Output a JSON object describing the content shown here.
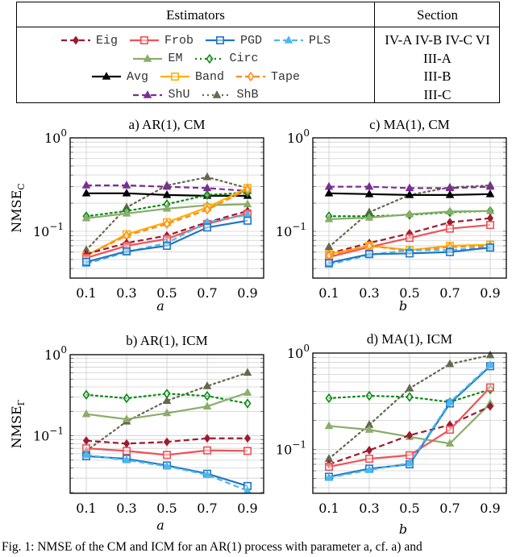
{
  "legend": {
    "header_estimators": "Estimators",
    "header_section": "Section",
    "rows": [
      {
        "section": "IV-A IV-B IV-C VI",
        "items": [
          "Eig",
          "Frob",
          "PGD",
          "PLS"
        ]
      },
      {
        "section": "III-A",
        "items": [
          "EM",
          "Circ"
        ]
      },
      {
        "section": "III-B",
        "items": [
          "Avg",
          "Band",
          "Tape"
        ]
      },
      {
        "section": "III-C",
        "items": [
          "ShU",
          "ShB"
        ]
      }
    ]
  },
  "styles": {
    "Eig": {
      "color": "#9b1b30",
      "dash": "dashed",
      "marker": "diamond-filled"
    },
    "Frob": {
      "color": "#ef5257",
      "dash": "solid",
      "marker": "square-open"
    },
    "PGD": {
      "color": "#1f77c4",
      "dash": "solid",
      "marker": "square-open"
    },
    "PLS": {
      "color": "#4cb8f0",
      "dash": "dashed",
      "marker": "triangle-filled"
    },
    "EM": {
      "color": "#8aad6a",
      "dash": "solid",
      "marker": "triangle-filled"
    },
    "Circ": {
      "color": "#0a8a12",
      "dash": "dotted",
      "marker": "diamond-open"
    },
    "Avg": {
      "color": "#000000",
      "dash": "solid",
      "marker": "triangle-filled"
    },
    "Band": {
      "color": "#ffb000",
      "dash": "solid",
      "marker": "square-open"
    },
    "Tape": {
      "color": "#ff8c1a",
      "dash": "dashed",
      "marker": "diamond-open"
    },
    "ShU": {
      "color": "#7b2d96",
      "dash": "dashed",
      "marker": "triangle-filled"
    },
    "ShB": {
      "color": "#65674f",
      "dash": "dotted",
      "marker": "triangle-filled"
    }
  },
  "caption": "Fig. 1: NMSE of the CM and ICM for an AR(1) process with parameter a, cf. a) and",
  "chart_data": [
    {
      "id": "a",
      "type": "line",
      "title": "a) AR(1), CM",
      "xlabel": "a",
      "ylabel": "NMSE",
      "ylabel_sub": "C",
      "yscale": "log",
      "ylim": [
        0.0316,
        1.0
      ],
      "ytick_labels": [
        "10⁻¹",
        "10⁰"
      ],
      "yticks": [
        0.1,
        1.0
      ],
      "x": [
        0.1,
        0.3,
        0.5,
        0.7,
        0.9
      ],
      "xtick_labels": [
        "0.1",
        "0.3",
        "0.5",
        "0.7",
        "0.9"
      ],
      "grid": true,
      "series": [
        {
          "name": "ShB",
          "values": [
            0.063,
            0.18,
            0.31,
            0.38,
            0.29
          ]
        },
        {
          "name": "ShU",
          "values": [
            0.31,
            0.31,
            0.3,
            0.29,
            0.27
          ]
        },
        {
          "name": "Avg",
          "values": [
            0.255,
            0.255,
            0.245,
            0.24,
            0.24
          ]
        },
        {
          "name": "Circ",
          "values": [
            0.145,
            0.165,
            0.195,
            0.245,
            0.26
          ]
        },
        {
          "name": "EM",
          "values": [
            0.138,
            0.155,
            0.175,
            0.19,
            0.195
          ]
        },
        {
          "name": "Band",
          "values": [
            0.055,
            0.093,
            0.125,
            0.18,
            0.29
          ]
        },
        {
          "name": "Tape",
          "values": [
            0.055,
            0.09,
            0.12,
            0.17,
            0.28
          ]
        },
        {
          "name": "Eig",
          "values": [
            0.057,
            0.075,
            0.09,
            0.125,
            0.165
          ]
        },
        {
          "name": "Frob",
          "values": [
            0.052,
            0.07,
            0.083,
            0.12,
            0.155
          ]
        },
        {
          "name": "PLS",
          "values": [
            0.045,
            0.06,
            0.075,
            0.125,
            0.15
          ]
        },
        {
          "name": "PGD",
          "values": [
            0.047,
            0.061,
            0.07,
            0.11,
            0.13
          ]
        }
      ]
    },
    {
      "id": "c",
      "type": "line",
      "title": "c) MA(1), CM",
      "xlabel": "b",
      "ylabel": "",
      "yscale": "log",
      "ylim": [
        0.0316,
        1.0
      ],
      "ytick_labels": [
        "10⁻¹",
        "10⁰"
      ],
      "yticks": [
        0.1,
        1.0
      ],
      "x": [
        0.1,
        0.3,
        0.5,
        0.7,
        0.9
      ],
      "xtick_labels": [
        "0.1",
        "0.3",
        "0.5",
        "0.7",
        "0.9"
      ],
      "grid": true,
      "series": [
        {
          "name": "ShB",
          "values": [
            0.068,
            0.16,
            0.245,
            0.295,
            0.31
          ]
        },
        {
          "name": "ShU",
          "values": [
            0.3,
            0.3,
            0.29,
            0.29,
            0.3
          ]
        },
        {
          "name": "Avg",
          "values": [
            0.255,
            0.25,
            0.245,
            0.245,
            0.25
          ]
        },
        {
          "name": "Circ",
          "values": [
            0.145,
            0.145,
            0.15,
            0.16,
            0.165
          ]
        },
        {
          "name": "EM",
          "values": [
            0.135,
            0.14,
            0.152,
            0.163,
            0.165
          ]
        },
        {
          "name": "Eig",
          "values": [
            0.058,
            0.075,
            0.095,
            0.125,
            0.138
          ]
        },
        {
          "name": "Frob",
          "values": [
            0.053,
            0.068,
            0.085,
            0.107,
            0.117
          ]
        },
        {
          "name": "Band",
          "values": [
            0.057,
            0.07,
            0.063,
            0.07,
            0.072
          ]
        },
        {
          "name": "Tape",
          "values": [
            0.055,
            0.07,
            0.062,
            0.068,
            0.07
          ]
        },
        {
          "name": "PLS",
          "values": [
            0.044,
            0.056,
            0.063,
            0.063,
            0.068
          ]
        },
        {
          "name": "PGD",
          "values": [
            0.046,
            0.057,
            0.058,
            0.06,
            0.067
          ]
        }
      ]
    },
    {
      "id": "b",
      "type": "line",
      "title": "b) AR(1), ICM",
      "xlabel": "a",
      "ylabel": "NMSE",
      "ylabel_sub": "Γ",
      "yscale": "log",
      "ylim": [
        0.0195,
        1.0
      ],
      "ytick_labels": [
        "10⁻¹",
        "10⁰"
      ],
      "yticks": [
        0.1,
        1.0
      ],
      "x": [
        0.1,
        0.3,
        0.5,
        0.7,
        0.9
      ],
      "xtick_labels": [
        "0.1",
        "0.3",
        "0.5",
        "0.7",
        "0.9"
      ],
      "grid": true,
      "series": [
        {
          "name": "ShB",
          "values": [
            0.065,
            0.15,
            0.27,
            0.41,
            0.6
          ]
        },
        {
          "name": "Circ",
          "values": [
            0.32,
            0.29,
            0.33,
            0.31,
            0.25
          ]
        },
        {
          "name": "EM",
          "values": [
            0.185,
            0.16,
            0.19,
            0.23,
            0.34
          ]
        },
        {
          "name": "Eig",
          "values": [
            0.087,
            0.08,
            0.084,
            0.093,
            0.093
          ]
        },
        {
          "name": "Frob",
          "values": [
            0.07,
            0.065,
            0.058,
            0.066,
            0.065
          ]
        },
        {
          "name": "PGD",
          "values": [
            0.056,
            0.052,
            0.043,
            0.034,
            0.024
          ]
        },
        {
          "name": "PLS",
          "values": [
            0.058,
            0.05,
            0.042,
            0.033,
            0.021
          ]
        }
      ]
    },
    {
      "id": "d",
      "type": "line",
      "title": "d) MA(1), ICM",
      "xlabel": "b",
      "ylabel": "",
      "yscale": "log",
      "ylim": [
        0.035,
        1.0
      ],
      "ytick_labels": [
        "10⁻¹",
        "10⁰"
      ],
      "yticks": [
        0.1,
        1.0
      ],
      "x": [
        0.1,
        0.3,
        0.5,
        0.7,
        0.9
      ],
      "xtick_labels": [
        "0.1",
        "0.3",
        "0.5",
        "0.7",
        "0.9"
      ],
      "grid": true,
      "series": [
        {
          "name": "ShB",
          "values": [
            0.08,
            0.18,
            0.43,
            0.77,
            0.95
          ]
        },
        {
          "name": "Circ",
          "values": [
            0.34,
            0.36,
            0.35,
            0.31,
            0.42
          ]
        },
        {
          "name": "EM",
          "values": [
            0.175,
            0.16,
            0.135,
            0.115,
            0.3
          ]
        },
        {
          "name": "Eig",
          "values": [
            0.07,
            0.098,
            0.14,
            0.18,
            0.28
          ]
        },
        {
          "name": "Frob",
          "values": [
            0.066,
            0.08,
            0.087,
            0.16,
            0.44
          ]
        },
        {
          "name": "PGD",
          "values": [
            0.052,
            0.063,
            0.07,
            0.3,
            0.73
          ]
        },
        {
          "name": "PLS",
          "values": [
            0.051,
            0.061,
            0.072,
            0.31,
            0.75
          ]
        }
      ]
    }
  ]
}
